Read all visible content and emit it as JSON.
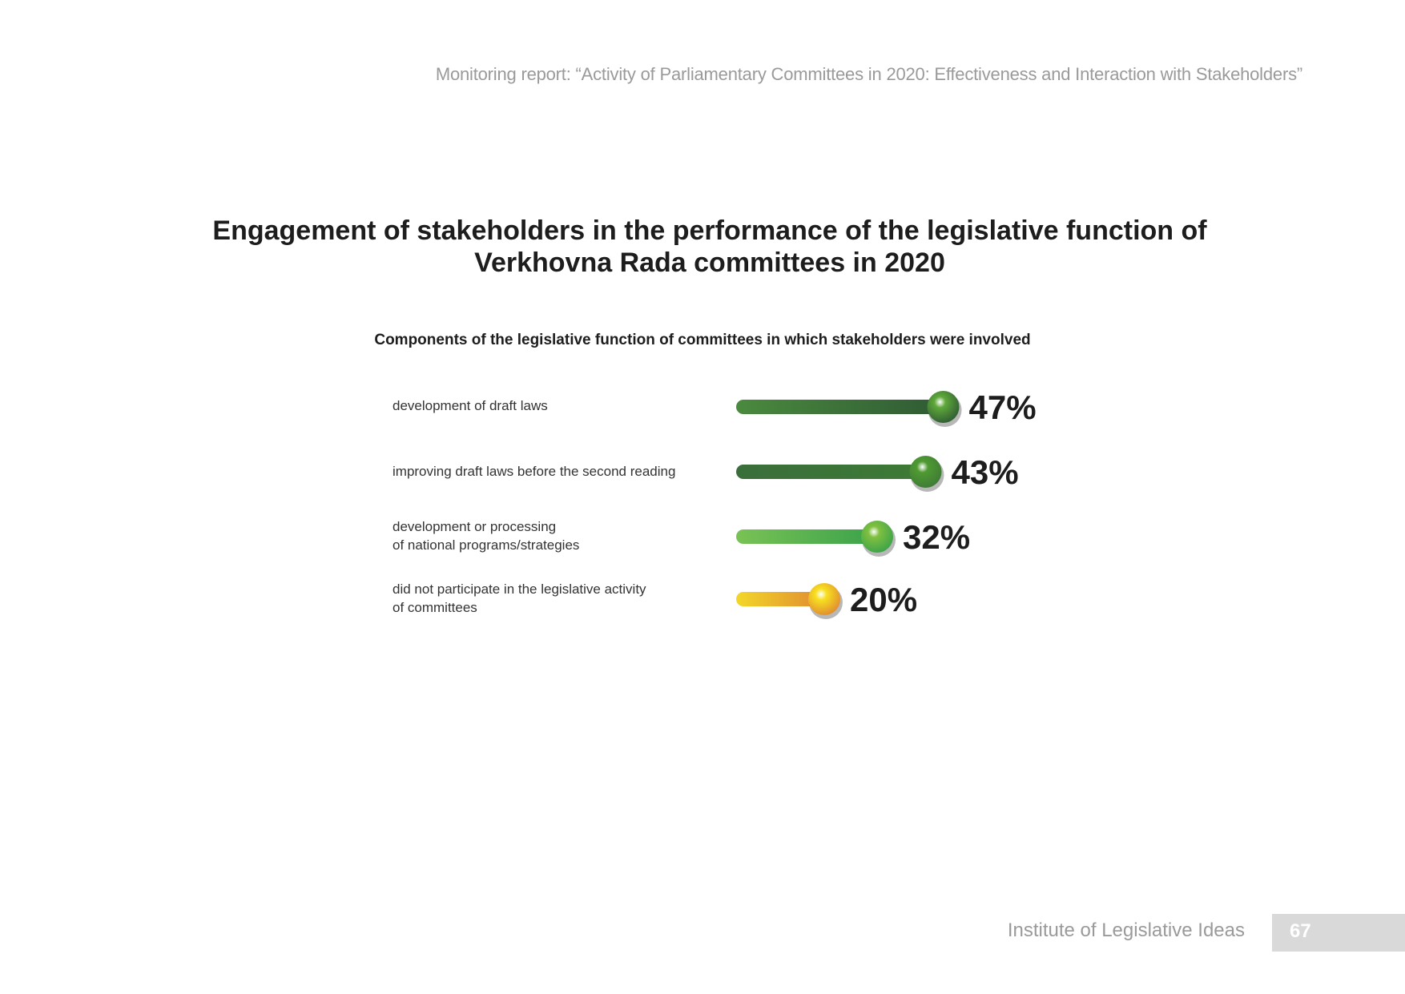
{
  "header": {
    "report_title": "Monitoring report: “Activity of Parliamentary Committees in 2020: Effectiveness and Interaction with Stakeholders”"
  },
  "title_lines": [
    "Engagement of stakeholders in the performance of the legislative function of",
    "Verkhovna Rada committees in 2020"
  ],
  "footer": {
    "institute": "Institute of Legislative Ideas",
    "page_number": "67"
  },
  "chart_data": {
    "type": "bar",
    "subtitle": "Components of the legislative function of committees in which stakeholders were involved",
    "categories": [
      "development of draft laws",
      "improving draft laws before the second reading",
      "development or processing\nof national programs/strategies",
      "did not participate in the legislative activity\nof committees"
    ],
    "values": [
      47,
      43,
      32,
      20
    ],
    "value_labels": [
      "47%",
      "43%",
      "32%",
      "20%"
    ],
    "unit": "%",
    "colors": [
      {
        "start": "#4a8a3e",
        "end": "#2f5a34",
        "knob": "#5ea83a"
      },
      {
        "start": "#3a6e3a",
        "end": "#3e7a36",
        "knob": "#4f9a32"
      },
      {
        "start": "#79c255",
        "end": "#3aa24a",
        "knob": "#7fc040"
      },
      {
        "start": "#f3d72a",
        "end": "#e08a30",
        "knob": "#f7e020"
      }
    ]
  }
}
